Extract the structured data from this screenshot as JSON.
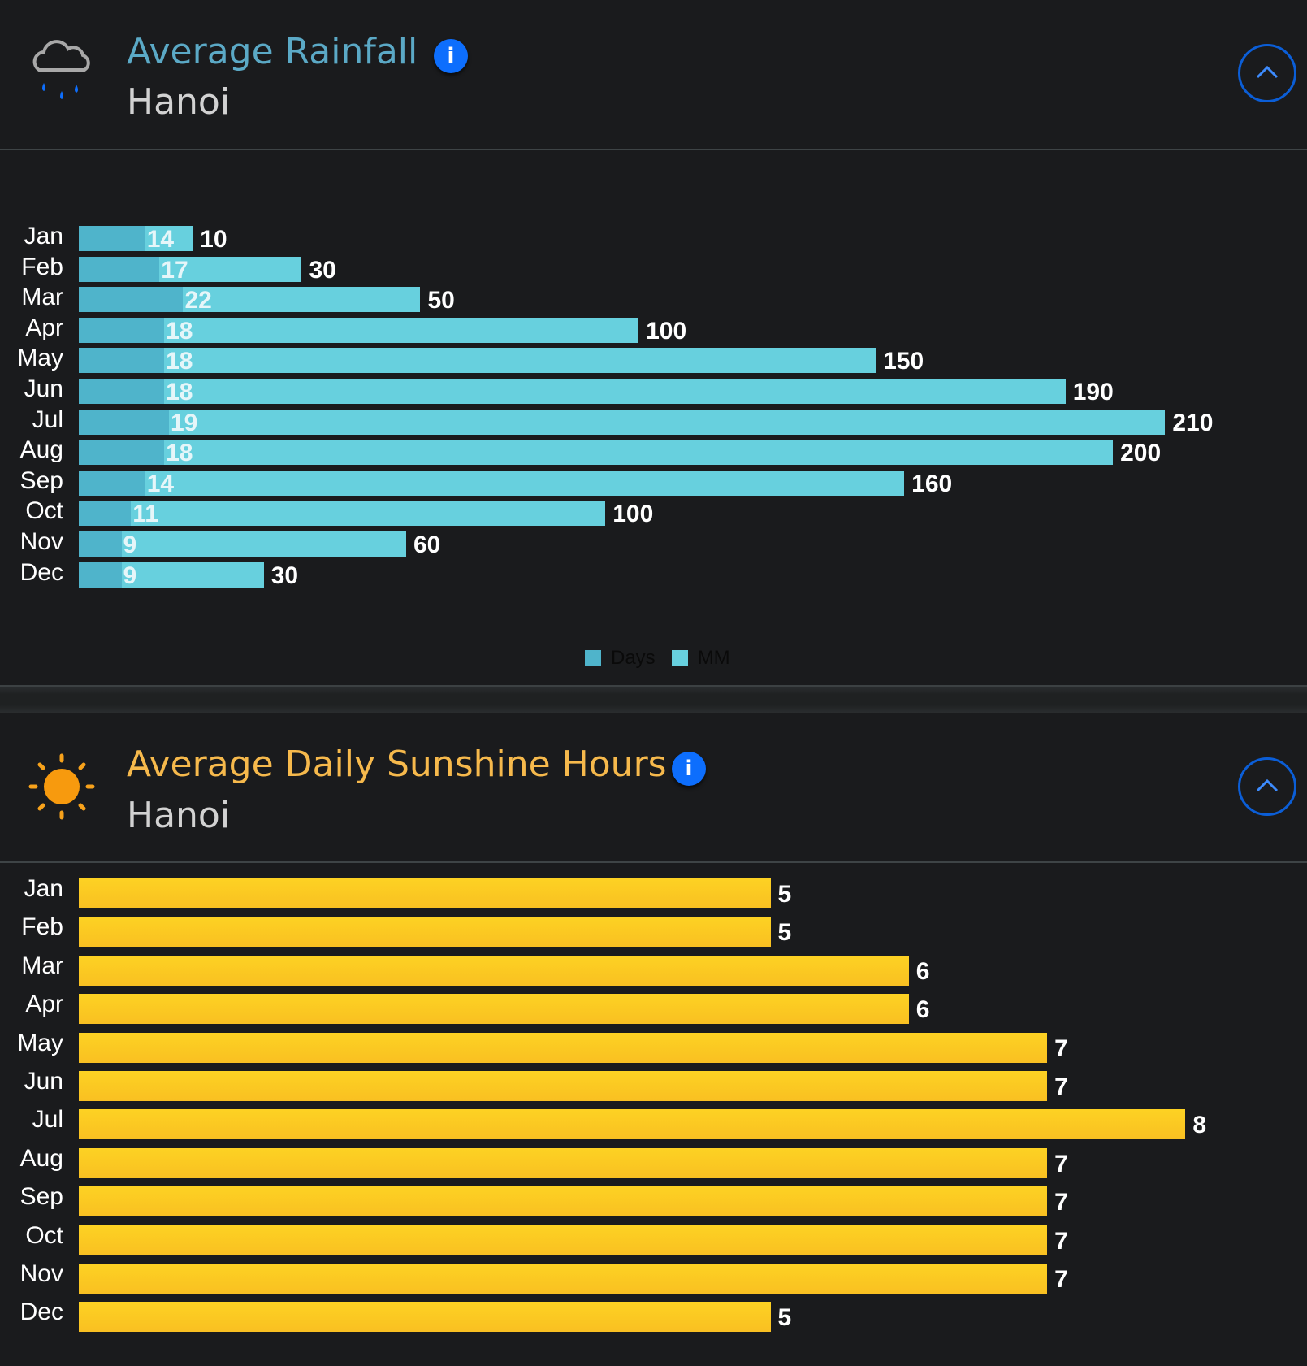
{
  "rainfall": {
    "title": "Average Rainfall",
    "subtitle": "Hanoi",
    "info_label": "i",
    "legend": [
      "Days",
      "MM"
    ]
  },
  "sunshine": {
    "title": "Average Daily Sunshine Hours",
    "subtitle": "Hanoi",
    "info_label": "i"
  },
  "colors": {
    "days": "#4fb4cb",
    "mm": "#67d0de",
    "sun": "#fbc926",
    "rain_title": "#5ba9c6",
    "sun_title": "#f6b94c"
  },
  "chart_data": [
    {
      "type": "bar",
      "orientation": "horizontal",
      "stacked": true,
      "title": "Average Rainfall",
      "categories": [
        "Jan",
        "Feb",
        "Mar",
        "Apr",
        "May",
        "Jun",
        "Jul",
        "Aug",
        "Sep",
        "Oct",
        "Nov",
        "Dec"
      ],
      "series": [
        {
          "name": "Days",
          "values": [
            14,
            17,
            22,
            18,
            18,
            18,
            19,
            18,
            14,
            11,
            9,
            9
          ]
        },
        {
          "name": "MM",
          "values": [
            10,
            30,
            50,
            100,
            150,
            190,
            210,
            200,
            160,
            100,
            60,
            30
          ]
        }
      ],
      "legend": "bottom-center",
      "grid": false
    },
    {
      "type": "bar",
      "orientation": "horizontal",
      "title": "Average Daily Sunshine Hours",
      "categories": [
        "Jan",
        "Feb",
        "Mar",
        "Apr",
        "May",
        "Jun",
        "Jul",
        "Aug",
        "Sep",
        "Oct",
        "Nov",
        "Dec"
      ],
      "values": [
        5,
        5,
        6,
        6,
        7,
        7,
        8,
        7,
        7,
        7,
        7,
        5
      ],
      "grid": false
    }
  ]
}
